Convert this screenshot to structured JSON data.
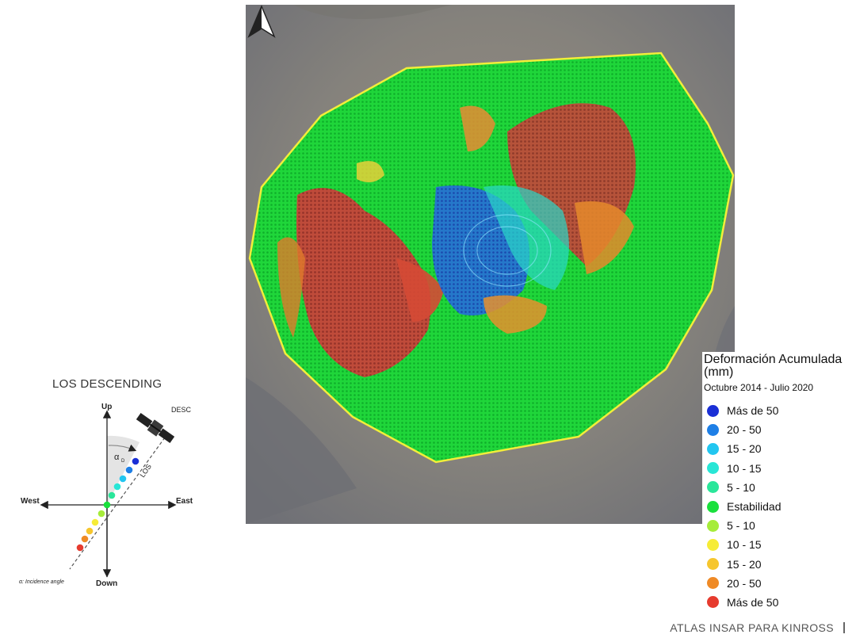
{
  "map": {
    "north_arrow_icon": "north-arrow-icon",
    "boundary_color": "#f2ee3a"
  },
  "legend": {
    "title": "Deformación Acumulada (mm)",
    "subtitle": "Octubre 2014 - Julio 2020",
    "items": [
      {
        "label": "Más de 50",
        "color": "#1a2fd6"
      },
      {
        "label": "20 - 50",
        "color": "#1e7fe6"
      },
      {
        "label": "15 - 20",
        "color": "#22c6f0"
      },
      {
        "label": "10 - 15",
        "color": "#28e6d6"
      },
      {
        "label": "5 - 10",
        "color": "#2ae69a"
      },
      {
        "label": "Estabilidad",
        "color": "#19e03c"
      },
      {
        "label": "5 - 10",
        "color": "#a6ec3a"
      },
      {
        "label": "10 - 15",
        "color": "#f6ec36"
      },
      {
        "label": "15 - 20",
        "color": "#f6c62e"
      },
      {
        "label": "20 - 50",
        "color": "#ef8a26"
      },
      {
        "label": "Más de 50",
        "color": "#e63b2e"
      }
    ]
  },
  "los_diagram": {
    "title": "LOS DESCENDING",
    "up": "Up",
    "down": "Down",
    "west": "West",
    "east": "East",
    "satellite_label": "DESC",
    "los_label": "LOS",
    "alpha_label": "α",
    "alpha_sub": "D",
    "footnote": "α: Incidence angle",
    "satellite_icon": "satellite-icon"
  },
  "footer": {
    "text": "ATLAS INSAR PARA KINROSS"
  }
}
